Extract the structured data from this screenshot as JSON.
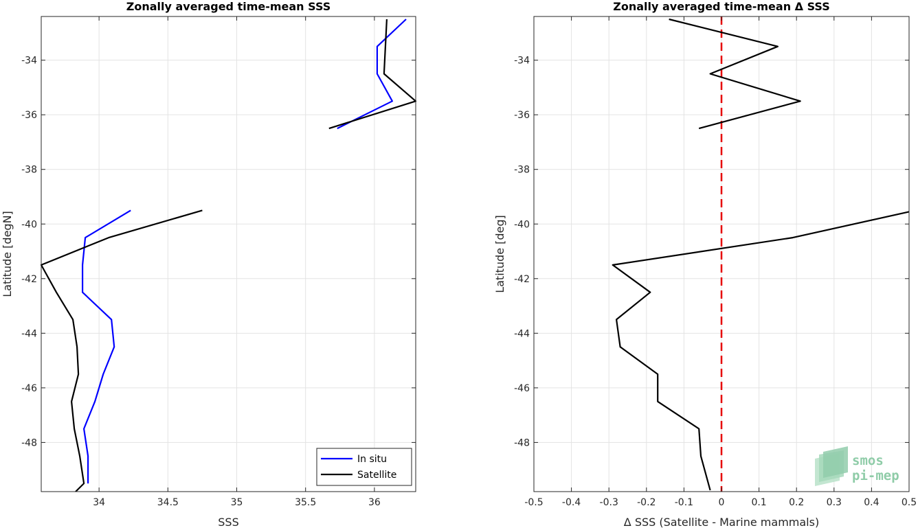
{
  "chart_data": [
    {
      "type": "line",
      "title": "Zonally averaged time-mean SSS",
      "xlabel": "SSS",
      "ylabel": "Latitude [degN]",
      "xlim": [
        33.58,
        36.3
      ],
      "ylim": [
        -49.8,
        -32.4
      ],
      "xticks": [
        34,
        34.5,
        35,
        35.5,
        36
      ],
      "xtick_labels": [
        "34",
        "34.5",
        "35",
        "35.5",
        "36"
      ],
      "yticks": [
        -48,
        -46,
        -44,
        -42,
        -40,
        -38,
        -36,
        -34
      ],
      "ytick_labels": [
        "-48",
        "-46",
        "-44",
        "-42",
        "-40",
        "-38",
        "-36",
        "-34"
      ],
      "grid": true,
      "legend_position": "bottom-right",
      "series": [
        {
          "name": "In situ",
          "color": "#0000ff",
          "segments": [
            {
              "x": [
                36.23,
                36.02,
                36.02,
                36.13,
                35.73
              ],
              "y": [
                -32.5,
                -33.5,
                -34.5,
                -35.5,
                -36.5
              ]
            },
            {
              "x": [
                34.23,
                33.9,
                33.88,
                33.88,
                34.09,
                34.11,
                34.03,
                33.97,
                33.89,
                33.92,
                33.92
              ],
              "y": [
                -39.5,
                -40.5,
                -41.5,
                -42.5,
                -43.5,
                -44.5,
                -45.5,
                -46.5,
                -47.5,
                -48.5,
                -49.5
              ]
            }
          ]
        },
        {
          "name": "Satellite",
          "color": "#000000",
          "segments": [
            {
              "x": [
                36.09,
                36.08,
                36.07,
                36.3,
                35.67
              ],
              "y": [
                -32.5,
                -33.5,
                -34.5,
                -35.5,
                -36.5
              ]
            },
            {
              "x": [
                34.75,
                34.07,
                33.58,
                33.69,
                33.81,
                33.84,
                33.85,
                33.8,
                33.82,
                33.86,
                33.89,
                33.83
              ],
              "y": [
                -39.5,
                -40.5,
                -41.5,
                -42.5,
                -43.5,
                -44.5,
                -45.5,
                -46.5,
                -47.5,
                -48.5,
                -49.5,
                -49.8
              ]
            }
          ]
        }
      ]
    },
    {
      "type": "line",
      "title": "Zonally averaged time-mean Δ SSS",
      "xlabel": "Δ SSS (Satellite - Marine mammals)",
      "ylabel": "Latitude [deg]",
      "xlim": [
        -0.5,
        0.5
      ],
      "ylim": [
        -49.8,
        -32.4
      ],
      "xticks": [
        -0.5,
        -0.4,
        -0.3,
        -0.2,
        -0.1,
        0,
        0.1,
        0.2,
        0.3,
        0.4,
        0.5
      ],
      "xtick_labels": [
        "-0.5",
        "-0.4",
        "-0.3",
        "-0.2",
        "-0.1",
        "0",
        "0.1",
        "0.2",
        "0.3",
        "0.4",
        "0.5"
      ],
      "yticks": [
        -48,
        -46,
        -44,
        -42,
        -40,
        -38,
        -36,
        -34
      ],
      "ytick_labels": [
        "-48",
        "-46",
        "-44",
        "-42",
        "-40",
        "-38",
        "-36",
        "-34"
      ],
      "grid": true,
      "reference_line": {
        "x": 0,
        "color": "#e60000",
        "style": "dashed"
      },
      "series": [
        {
          "color": "#000000",
          "segments": [
            {
              "x": [
                -0.14,
                0.15,
                -0.03,
                0.21,
                -0.06
              ],
              "y": [
                -32.5,
                -33.5,
                -34.5,
                -35.5,
                -36.5
              ]
            },
            {
              "x": [
                0.5,
                0.19,
                -0.29,
                -0.19,
                -0.28,
                -0.27,
                -0.17,
                -0.17,
                -0.06,
                -0.055,
                -0.03
              ],
              "y": [
                -39.55,
                -40.5,
                -41.5,
                -42.5,
                -43.5,
                -44.5,
                -45.5,
                -46.5,
                -47.5,
                -48.5,
                -49.75
              ]
            }
          ]
        }
      ]
    }
  ],
  "logo": {
    "line1": "smos",
    "line2": "pi-mep"
  }
}
